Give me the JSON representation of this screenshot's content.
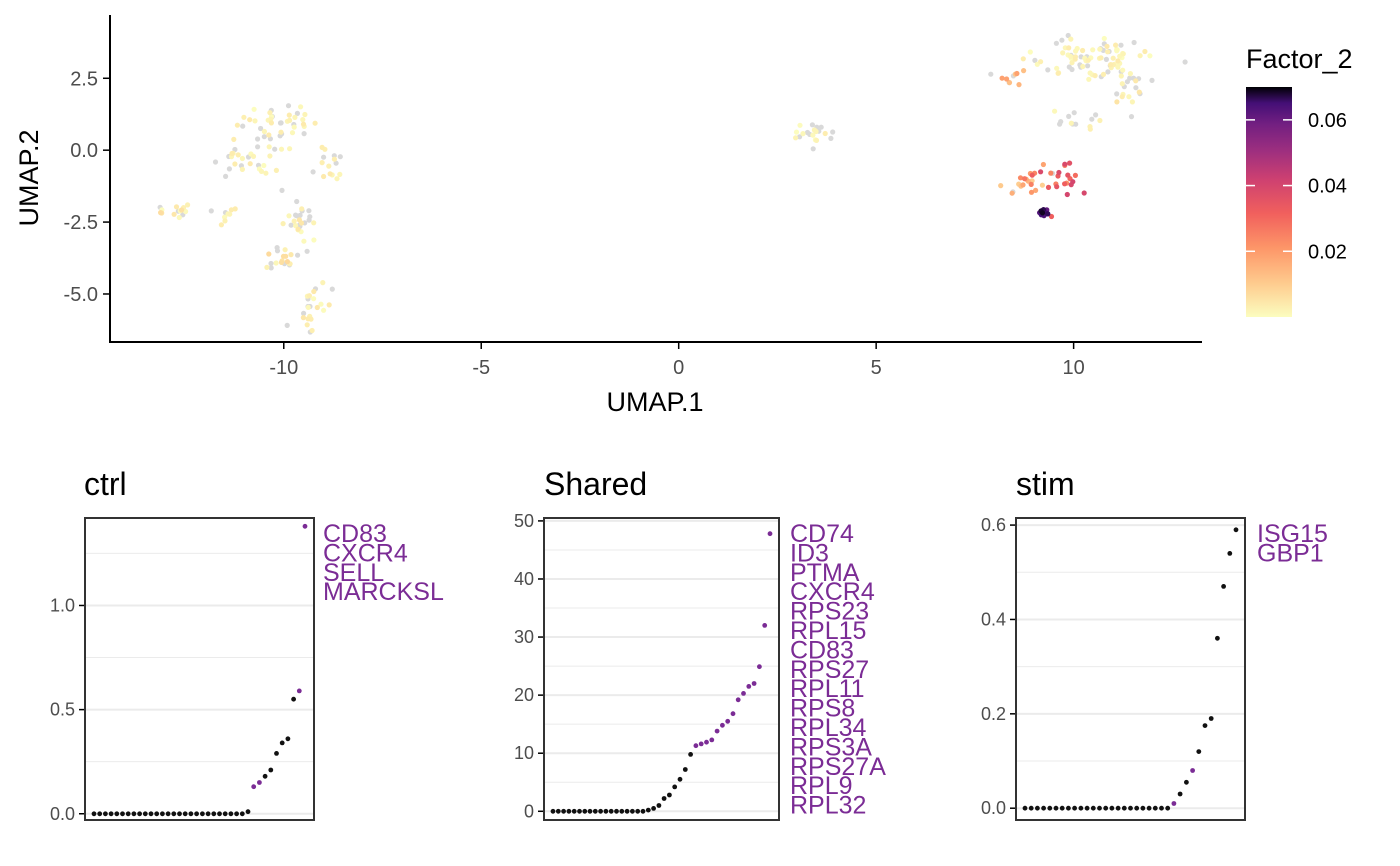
{
  "chart_data": [
    {
      "type": "scatter",
      "title": "",
      "xlabel": "UMAP.1",
      "ylabel": "UMAP.2",
      "xlim": [
        -14.4,
        13.2
      ],
      "ylim": [
        -6.6,
        4.7
      ],
      "xticks": [
        -10,
        -5,
        0,
        5,
        10
      ],
      "xtick_labels": [
        "-10",
        "-5",
        "0",
        "5",
        "10"
      ],
      "yticks": [
        -5,
        -2.5,
        0,
        2.5
      ],
      "ytick_labels": [
        "-5.0",
        "-2.5",
        "0.0",
        "2.5"
      ],
      "color_legend": {
        "title": "Factor_2",
        "range": [
          0,
          0.07
        ],
        "ticks": [
          0.02,
          0.04,
          0.06
        ],
        "tick_labels": [
          "0.02",
          "0.04",
          "0.06"
        ],
        "palette": "magma (reversed)",
        "na_color": "#d9d9d9"
      },
      "clusters": [
        {
          "center": [
            -10.2,
            0.9
          ],
          "spread": [
            0.7,
            0.6
          ],
          "n": 45,
          "value_range": [
            0,
            0.004
          ],
          "na_fraction": 0.4
        },
        {
          "center": [
            -11.0,
            -0.5
          ],
          "spread": [
            0.6,
            0.5
          ],
          "n": 25,
          "value_range": [
            0,
            0.004
          ],
          "na_fraction": 0.35
        },
        {
          "center": [
            -12.7,
            -2.1
          ],
          "spread": [
            0.4,
            0.15
          ],
          "n": 14,
          "value_range": [
            0,
            0.008
          ],
          "na_fraction": 0.3
        },
        {
          "center": [
            -11.6,
            -2.3
          ],
          "spread": [
            0.35,
            0.25
          ],
          "n": 9,
          "value_range": [
            0,
            0.004
          ],
          "na_fraction": 0.4
        },
        {
          "center": [
            -8.8,
            -0.4
          ],
          "spread": [
            0.3,
            0.6
          ],
          "n": 15,
          "value_range": [
            0,
            0.004
          ],
          "na_fraction": 0.5
        },
        {
          "center": [
            -9.6,
            -2.5
          ],
          "spread": [
            0.3,
            0.7
          ],
          "n": 28,
          "value_range": [
            0,
            0.005
          ],
          "na_fraction": 0.5
        },
        {
          "center": [
            -10.0,
            -3.9
          ],
          "spread": [
            0.3,
            0.35
          ],
          "n": 18,
          "value_range": [
            0,
            0.008
          ],
          "na_fraction": 0.3
        },
        {
          "center": [
            -9.2,
            -5.5
          ],
          "spread": [
            0.3,
            0.55
          ],
          "n": 24,
          "value_range": [
            0,
            0.005
          ],
          "na_fraction": 0.3
        },
        {
          "center": [
            3.5,
            0.6
          ],
          "spread": [
            0.35,
            0.3
          ],
          "n": 20,
          "value_range": [
            0,
            0.004
          ],
          "na_fraction": 0.55
        },
        {
          "center": [
            10.3,
            3.2
          ],
          "spread": [
            1.1,
            0.5
          ],
          "n": 85,
          "value_range": [
            0,
            0.004
          ],
          "na_fraction": 0.35
        },
        {
          "center": [
            11.3,
            2.1
          ],
          "spread": [
            0.4,
            0.6
          ],
          "n": 20,
          "value_range": [
            0,
            0.006
          ],
          "na_fraction": 0.4
        },
        {
          "center": [
            8.5,
            2.5
          ],
          "spread": [
            0.3,
            0.2
          ],
          "n": 10,
          "value_range": [
            0.004,
            0.022
          ],
          "na_fraction": 0.2
        },
        {
          "center": [
            10.0,
            1.2
          ],
          "spread": [
            0.6,
            0.3
          ],
          "n": 12,
          "value_range": [
            0,
            0.004
          ],
          "na_fraction": 0.6
        },
        {
          "center": [
            8.8,
            -1.1
          ],
          "spread": [
            0.45,
            0.3
          ],
          "n": 18,
          "value_range": [
            0.008,
            0.028
          ],
          "na_fraction": 0.1
        },
        {
          "center": [
            9.6,
            -0.9
          ],
          "spread": [
            0.4,
            0.5
          ],
          "n": 22,
          "value_range": [
            0.018,
            0.04
          ],
          "na_fraction": 0.05
        },
        {
          "center": [
            9.2,
            -2.15
          ],
          "spread": [
            0.12,
            0.08
          ],
          "n": 14,
          "value_range": [
            0.06,
            0.07
          ],
          "na_fraction": 0
        }
      ]
    },
    {
      "type": "scatter",
      "title": "ctrl",
      "ylim": [
        -0.03,
        1.42
      ],
      "yticks": [
        0,
        0.5,
        1.0
      ],
      "ytick_labels": [
        "0.0",
        "0.5",
        "1.0"
      ],
      "minor_yticks": [
        0.25,
        0.75,
        1.25
      ],
      "values": [
        0,
        0,
        0,
        0,
        0,
        0,
        0,
        0,
        0,
        0,
        0,
        0,
        0,
        0,
        0,
        0,
        0,
        0,
        0,
        0,
        0,
        0,
        0,
        0,
        0,
        0,
        0,
        0.01,
        0.13,
        0.15,
        0.18,
        0.21,
        0.29,
        0.34,
        0.36,
        0.55,
        0.59,
        1.38
      ],
      "highlighted": [
        28,
        29,
        36,
        37
      ],
      "gene_labels": [
        "CD83",
        "CXCR4",
        "SELL",
        "MARCKSL"
      ]
    },
    {
      "type": "scatter",
      "title": "Shared",
      "ylim": [
        -1.5,
        50.5
      ],
      "yticks": [
        0,
        10,
        20,
        30,
        40,
        50
      ],
      "ytick_labels": [
        "0",
        "10",
        "20",
        "30",
        "40",
        "50"
      ],
      "minor_yticks": [
        5,
        15,
        25,
        35,
        45
      ],
      "values": [
        0,
        0,
        0,
        0,
        0,
        0,
        0,
        0,
        0,
        0,
        0,
        0,
        0,
        0,
        0,
        0,
        0,
        0,
        0.2,
        0.5,
        1.0,
        2.2,
        2.8,
        4.2,
        5.5,
        7.2,
        9.8,
        11.3,
        11.6,
        11.9,
        12.3,
        13.8,
        14.8,
        15.5,
        16.8,
        19.2,
        20.3,
        21.5,
        22.0,
        24.9,
        32.0,
        47.8
      ],
      "highlighted": [
        27,
        28,
        29,
        30,
        31,
        32,
        33,
        34,
        35,
        36,
        37,
        38,
        39,
        40,
        41
      ],
      "gene_labels": [
        "CD74",
        "ID3",
        "PTMA",
        "CXCR4",
        "RPS23",
        "RPL15",
        "CD83",
        "RPS27",
        "RPL11",
        "RPS8",
        "RPL34",
        "RPS3A",
        "RPS27A",
        "RPL9",
        "RPL32"
      ]
    },
    {
      "type": "scatter",
      "title": "stim",
      "ylim": [
        -0.025,
        0.615
      ],
      "yticks": [
        0,
        0.2,
        0.4,
        0.6
      ],
      "ytick_labels": [
        "0.0",
        "0.2",
        "0.4",
        "0.6"
      ],
      "minor_yticks": [
        0.1,
        0.3,
        0.5
      ],
      "values": [
        0,
        0,
        0,
        0,
        0,
        0,
        0,
        0,
        0,
        0,
        0,
        0,
        0,
        0,
        0,
        0,
        0,
        0,
        0,
        0,
        0,
        0,
        0,
        0,
        0.01,
        0.03,
        0.055,
        0.08,
        0.12,
        0.175,
        0.19,
        0.36,
        0.47,
        0.54,
        0.59
      ],
      "highlighted": [
        24,
        27
      ],
      "gene_labels": [
        "ISG15",
        "GBP1"
      ]
    }
  ]
}
